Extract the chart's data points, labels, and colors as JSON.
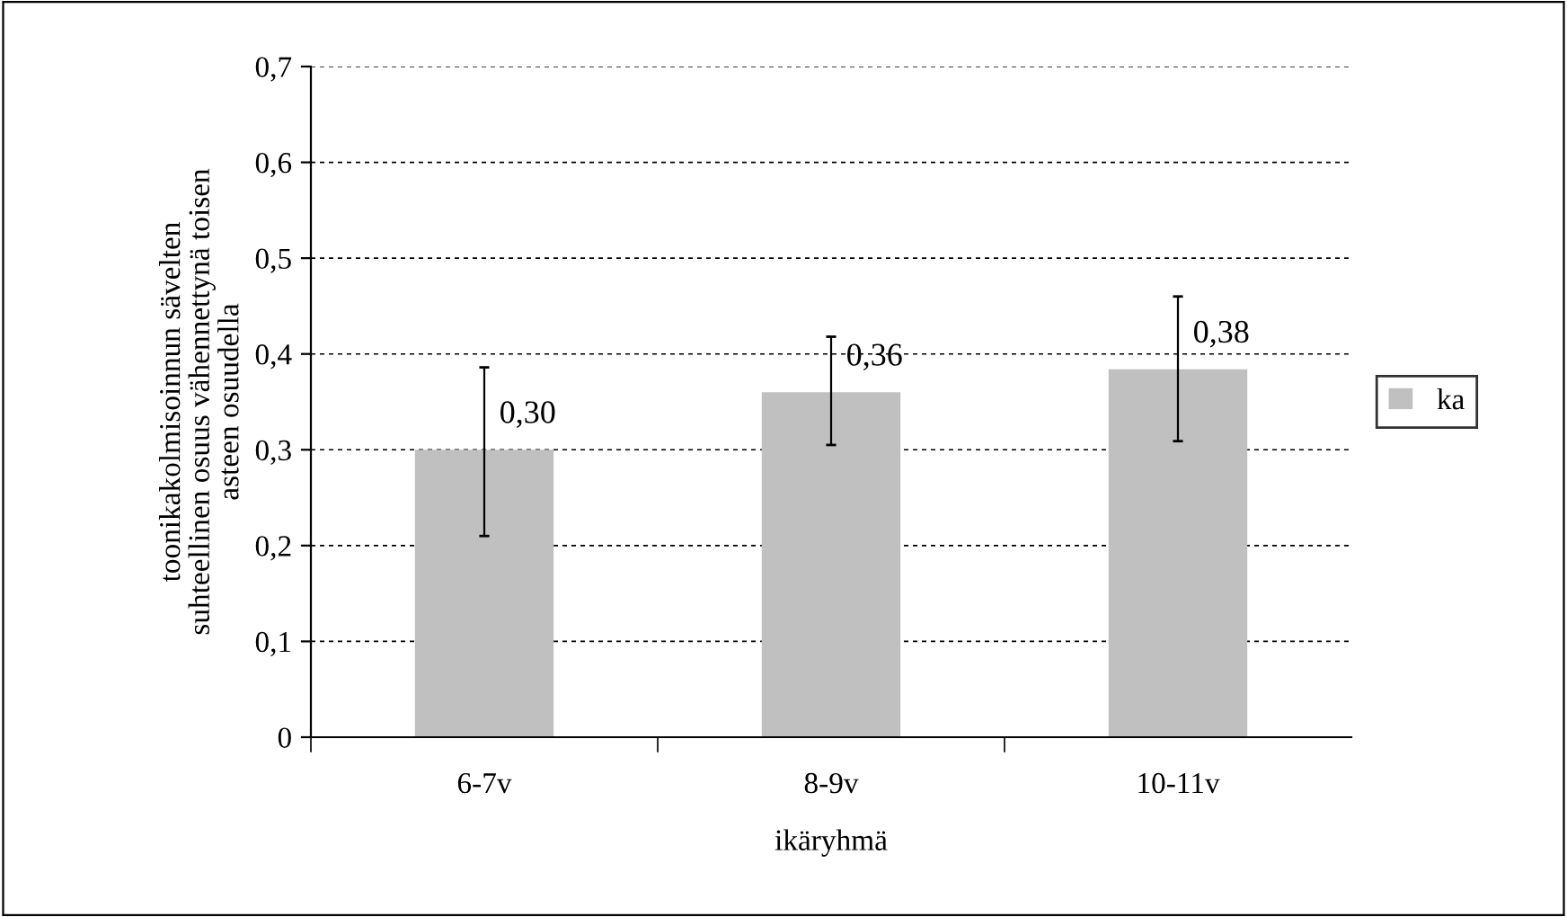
{
  "chart_data": {
    "type": "bar",
    "xlabel": "ikäryhmä",
    "ylabel": "toonikakolmisoinnun sävelten\nsuhteellinen osuus vähennettynä toisen\nasteen osuudella",
    "categories": [
      "6-7v",
      "8-9v",
      "10-11v"
    ],
    "series": [
      {
        "name": "ka",
        "color": "#c0c0c0",
        "values": [
          0.3,
          0.36,
          0.384
        ],
        "value_labels": [
          "0,30",
          "0,36",
          "0,38"
        ],
        "errors": [
          [
            0.21,
            0.386
          ],
          [
            0.305,
            0.418
          ],
          [
            0.309,
            0.46
          ]
        ]
      }
    ],
    "ylim": [
      0,
      0.7
    ],
    "yticks": [
      {
        "value": 0,
        "label": "0"
      },
      {
        "value": 0.1,
        "label": "0,1"
      },
      {
        "value": 0.2,
        "label": "0,2"
      },
      {
        "value": 0.3,
        "label": "0,3"
      },
      {
        "value": 0.4,
        "label": "0,4"
      },
      {
        "value": 0.5,
        "label": "0,5"
      },
      {
        "value": 0.6,
        "label": "0,6"
      },
      {
        "value": 0.7,
        "label": "0,7"
      }
    ],
    "grid": "y",
    "legend": "right"
  }
}
